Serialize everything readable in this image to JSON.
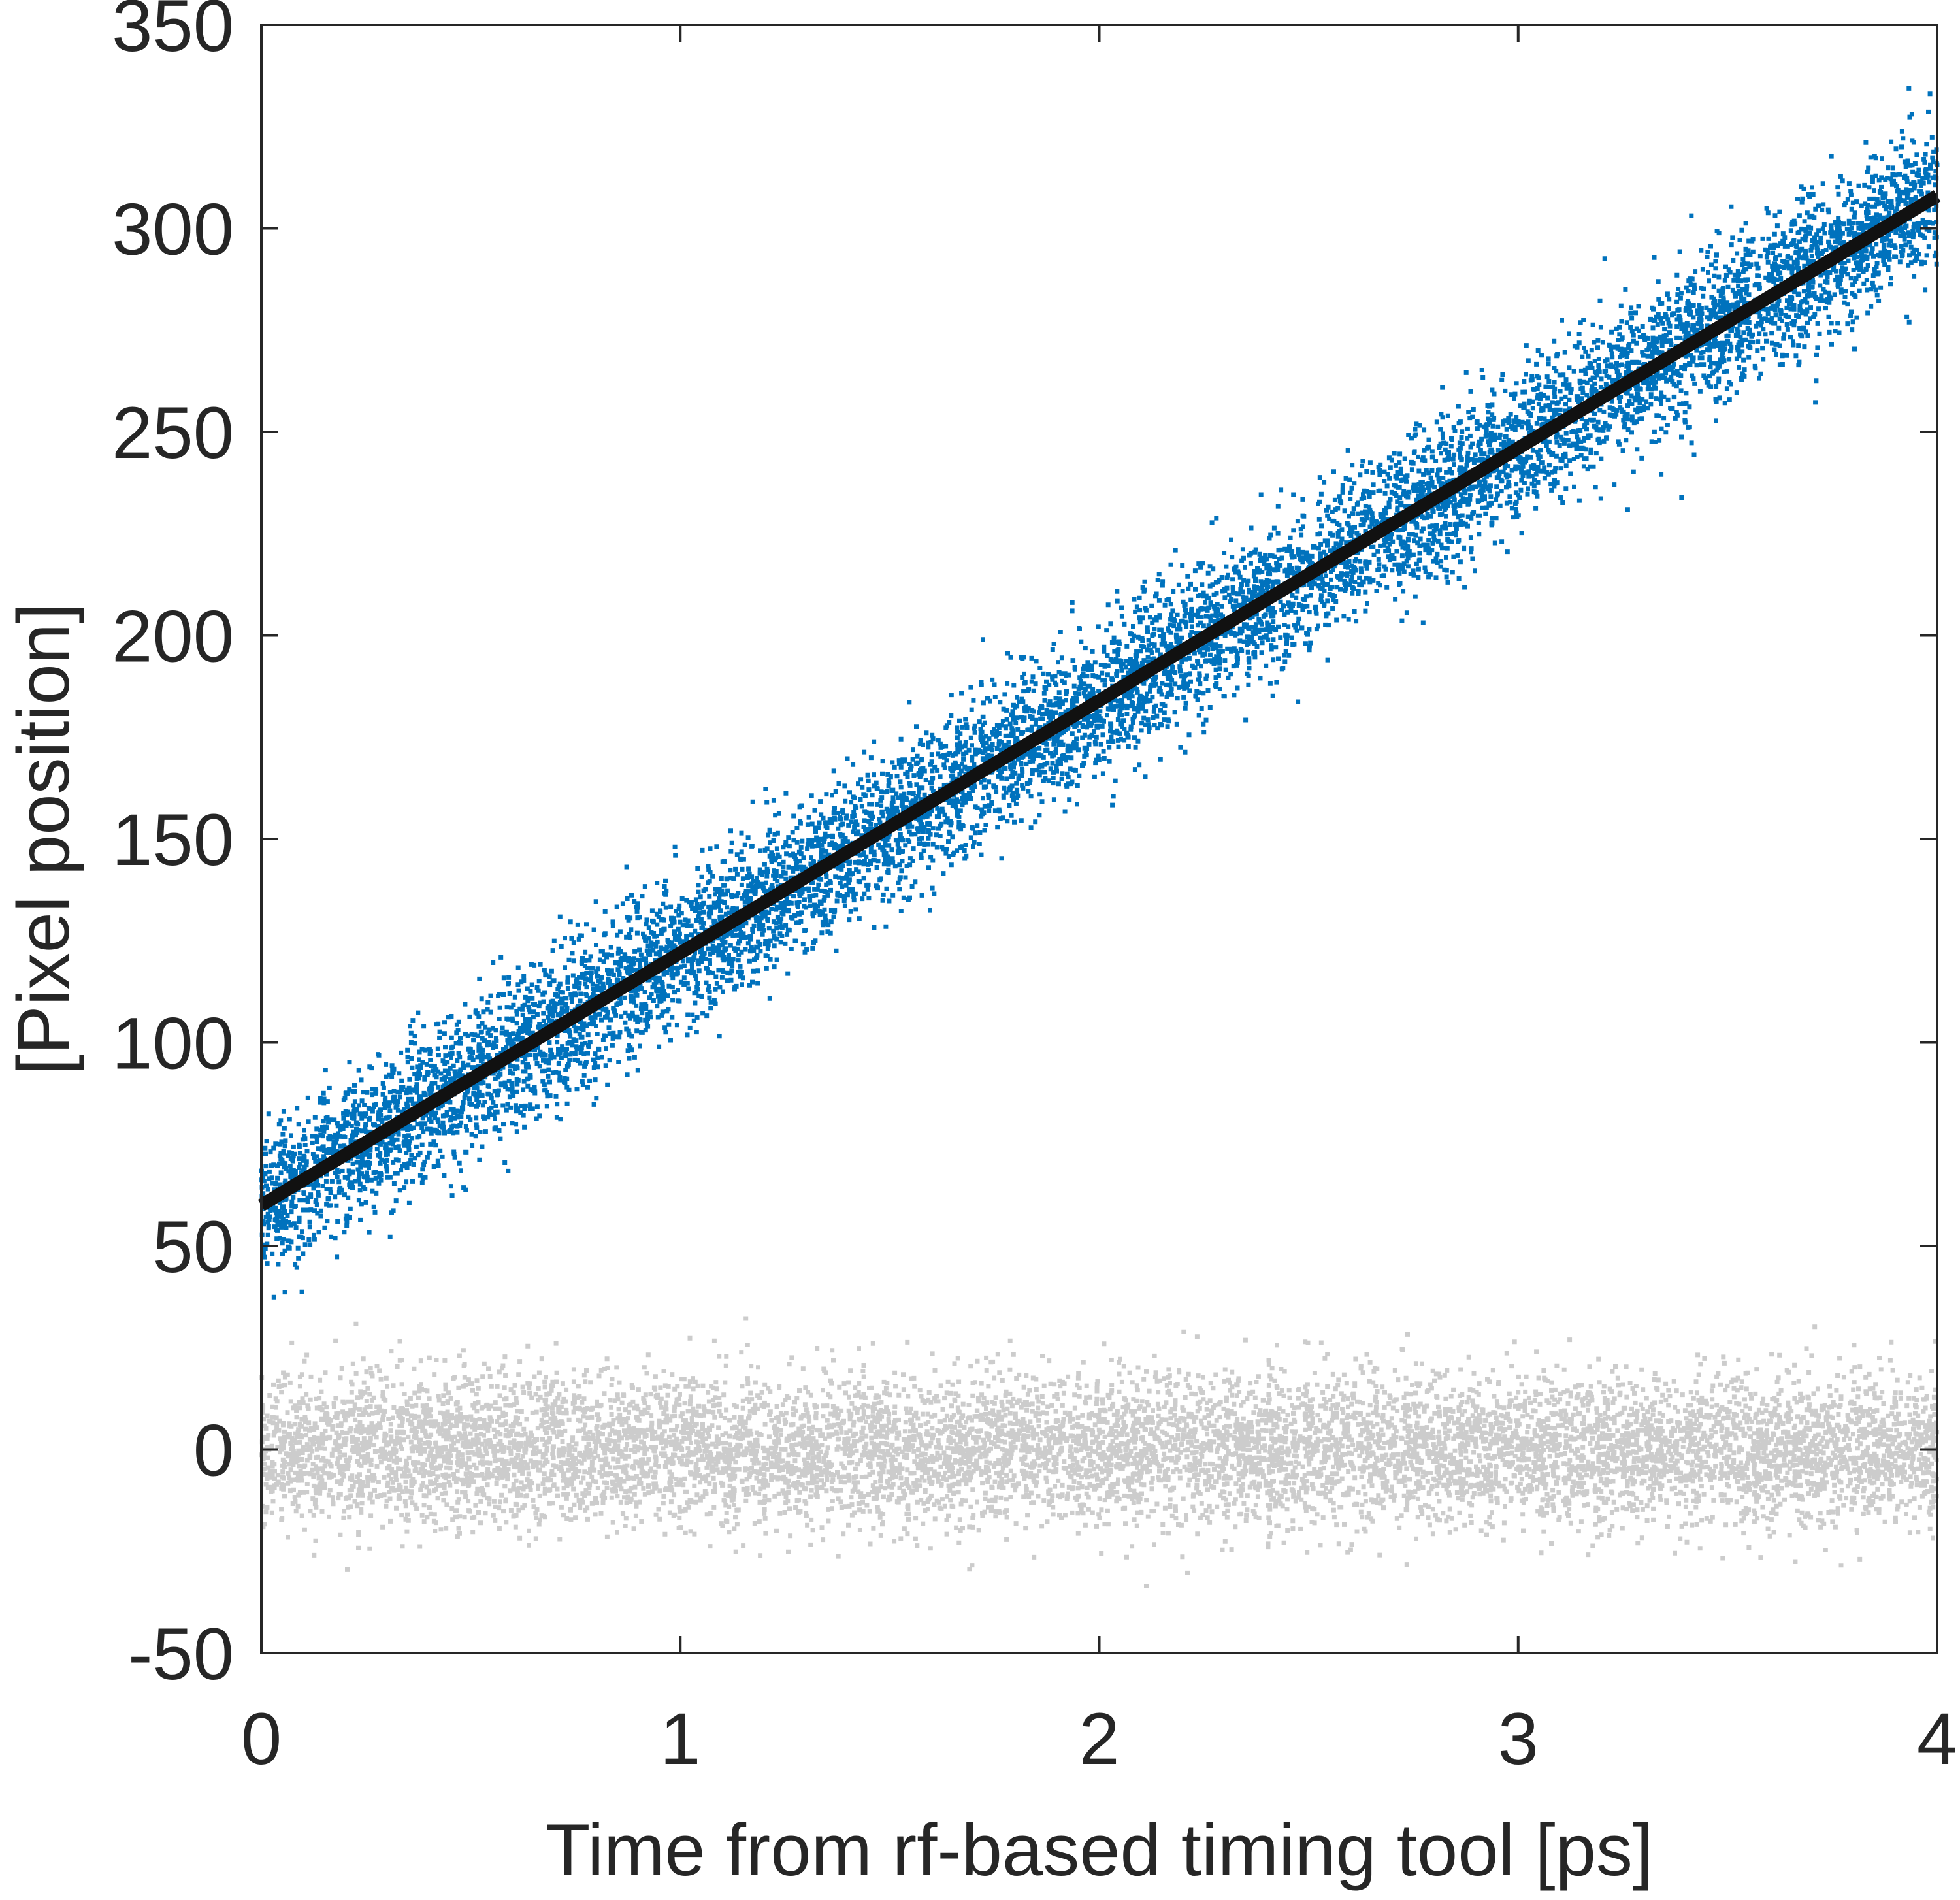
{
  "chart_data": {
    "type": "scatter",
    "title": "",
    "xlabel": "Time from rf-based timing tool [ps]",
    "ylabel": "[Pixel position]",
    "xlim": [
      0,
      4
    ],
    "ylim": [
      -50,
      350
    ],
    "x_ticks": [
      0,
      1,
      2,
      3,
      4
    ],
    "y_ticks": [
      -50,
      0,
      50,
      100,
      150,
      200,
      250,
      300,
      350
    ],
    "x_tick_labels": [
      "0",
      "1",
      "2",
      "3",
      "4"
    ],
    "y_tick_labels": [
      "-50",
      "0",
      "50",
      "100",
      "150",
      "200",
      "250",
      "300",
      "350"
    ],
    "grid": false,
    "legend": "none",
    "colors": {
      "measured_points": "#0072BD",
      "reference_points": "#CCCCCC",
      "fit_line": "#111111",
      "axes": "#262626"
    },
    "series": [
      {
        "type": "scatter",
        "x_range": [
          0,
          4
        ],
        "trend": {
          "slope": 62,
          "intercept": 60
        },
        "spread_sd": 9,
        "approx_points": 9000
      },
      {
        "type": "scatter",
        "x_range": [
          0,
          4
        ],
        "trend": {
          "slope": 0,
          "intercept": 0
        },
        "spread_sd": 9,
        "approx_points": 9000
      },
      {
        "type": "line",
        "x": [
          0,
          4
        ],
        "y": [
          60,
          308
        ]
      }
    ]
  }
}
